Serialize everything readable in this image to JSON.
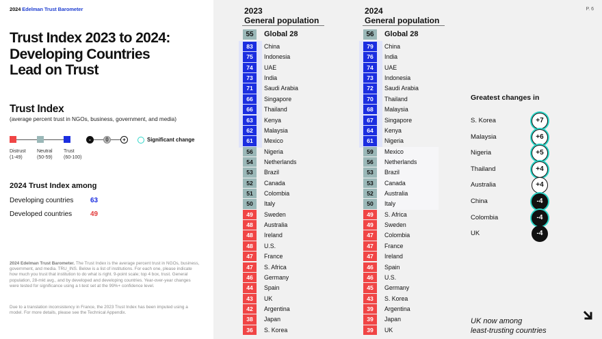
{
  "brand": {
    "year": "2024",
    "name": "Edelman Trust Barometer"
  },
  "title": [
    "Trust Index 2023 to 2024:",
    "Developing Countries",
    "Lead on Trust"
  ],
  "trust_index": {
    "heading": "Trust Index",
    "subtitle": "(average percent trust in NGOs, business, government, and media)",
    "legend": [
      {
        "label": "Distrust",
        "range": "(1-49)",
        "color": "#f04545"
      },
      {
        "label": "Neutral",
        "range": "(50-59)",
        "color": "#9bb8b8"
      },
      {
        "label": "Trust",
        "range": "(60-100)",
        "color": "#1b2ee0"
      }
    ],
    "symbols": {
      "neg": "-",
      "zero": "0",
      "pos": "+"
    },
    "significant_label": "Significant change"
  },
  "among": {
    "heading": "2024 Trust Index among",
    "rows": [
      {
        "label": "Developing countries",
        "value": "63",
        "color": "#1b2ee0"
      },
      {
        "label": "Developed countries",
        "value": "49",
        "color": "#e23b3b"
      }
    ]
  },
  "footnote1_bold": "2024 Edelman Trust Barometer.",
  "footnote1": " The Trust Index is the average percent trust in NGOs, business, government, and media. TRU_INS. Below is a list of institutions. For each one, please indicate how much you trust that institution to do what is right. 9-point scale; top 4 box, trust. General population, 28-mkt avg., and by developed and developing countries. Year-over-year changes were tested for significance using a t-test set at the 99%+ confidence level.",
  "footnote2": "Due to a translation inconsistency in France, the 2023 Trust Index has been imputed using a model. For more details, please see the Technical Appendix.",
  "page": "P. 6",
  "columns": [
    {
      "year": "2023",
      "label": "General population",
      "global": {
        "value": "55",
        "label": "Global 28"
      },
      "rows": [
        {
          "v": "83",
          "c": "China",
          "t": "trust"
        },
        {
          "v": "75",
          "c": "Indonesia",
          "t": "trust"
        },
        {
          "v": "74",
          "c": "UAE",
          "t": "trust"
        },
        {
          "v": "73",
          "c": "India",
          "t": "trust"
        },
        {
          "v": "71",
          "c": "Saudi Arabia",
          "t": "trust"
        },
        {
          "v": "66",
          "c": "Singapore",
          "t": "trust"
        },
        {
          "v": "66",
          "c": "Thailand",
          "t": "trust"
        },
        {
          "v": "63",
          "c": "Kenya",
          "t": "trust"
        },
        {
          "v": "62",
          "c": "Malaysia",
          "t": "trust"
        },
        {
          "v": "61",
          "c": "Mexico",
          "t": "trust"
        },
        {
          "v": "56",
          "c": "Nigeria",
          "t": "neutral"
        },
        {
          "v": "54",
          "c": "Netherlands",
          "t": "neutral"
        },
        {
          "v": "53",
          "c": "Brazil",
          "t": "neutral"
        },
        {
          "v": "52",
          "c": "Canada",
          "t": "neutral"
        },
        {
          "v": "51",
          "c": "Colombia",
          "t": "neutral"
        },
        {
          "v": "50",
          "c": "Italy",
          "t": "neutral"
        },
        {
          "v": "49",
          "c": "Sweden",
          "t": "distrust"
        },
        {
          "v": "48",
          "c": "Australia",
          "t": "distrust"
        },
        {
          "v": "48",
          "c": "Ireland",
          "t": "distrust"
        },
        {
          "v": "48",
          "c": "U.S.",
          "t": "distrust"
        },
        {
          "v": "47",
          "c": "France",
          "t": "distrust"
        },
        {
          "v": "47",
          "c": "S. Africa",
          "t": "distrust"
        },
        {
          "v": "46",
          "c": "Germany",
          "t": "distrust"
        },
        {
          "v": "44",
          "c": "Spain",
          "t": "distrust"
        },
        {
          "v": "43",
          "c": "UK",
          "t": "distrust"
        },
        {
          "v": "42",
          "c": "Argentina",
          "t": "distrust"
        },
        {
          "v": "38",
          "c": "Japan",
          "t": "distrust"
        },
        {
          "v": "36",
          "c": "S. Korea",
          "t": "distrust"
        }
      ]
    },
    {
      "year": "2024",
      "label": "General population",
      "global": {
        "value": "56",
        "label": "Global 28"
      },
      "rows": [
        {
          "v": "79",
          "c": "China",
          "t": "trust"
        },
        {
          "v": "76",
          "c": "India",
          "t": "trust"
        },
        {
          "v": "74",
          "c": "UAE",
          "t": "trust"
        },
        {
          "v": "73",
          "c": "Indonesia",
          "t": "trust"
        },
        {
          "v": "72",
          "c": "Saudi Arabia",
          "t": "trust"
        },
        {
          "v": "70",
          "c": "Thailand",
          "t": "trust"
        },
        {
          "v": "68",
          "c": "Malaysia",
          "t": "trust"
        },
        {
          "v": "67",
          "c": "Singapore",
          "t": "trust"
        },
        {
          "v": "64",
          "c": "Kenya",
          "t": "trust"
        },
        {
          "v": "61",
          "c": "Nigeria",
          "t": "trust"
        },
        {
          "v": "59",
          "c": "Mexico",
          "t": "neutral"
        },
        {
          "v": "56",
          "c": "Netherlands",
          "t": "neutral"
        },
        {
          "v": "53",
          "c": "Brazil",
          "t": "neutral"
        },
        {
          "v": "53",
          "c": "Canada",
          "t": "neutral"
        },
        {
          "v": "52",
          "c": "Australia",
          "t": "neutral"
        },
        {
          "v": "50",
          "c": "Italy",
          "t": "neutral"
        },
        {
          "v": "49",
          "c": "S. Africa",
          "t": "distrust"
        },
        {
          "v": "49",
          "c": "Sweden",
          "t": "distrust"
        },
        {
          "v": "47",
          "c": "Colombia",
          "t": "distrust"
        },
        {
          "v": "47",
          "c": "France",
          "t": "distrust"
        },
        {
          "v": "47",
          "c": "Ireland",
          "t": "distrust"
        },
        {
          "v": "46",
          "c": "Spain",
          "t": "distrust"
        },
        {
          "v": "46",
          "c": "U.S.",
          "t": "distrust"
        },
        {
          "v": "45",
          "c": "Germany",
          "t": "distrust"
        },
        {
          "v": "43",
          "c": "S. Korea",
          "t": "distrust"
        },
        {
          "v": "39",
          "c": "Argentina",
          "t": "distrust"
        },
        {
          "v": "39",
          "c": "Japan",
          "t": "distrust"
        },
        {
          "v": "39",
          "c": "UK",
          "t": "distrust"
        }
      ]
    }
  ],
  "tier_colors": {
    "trust": "#1b2ee0",
    "neutral": "#9bb8b8",
    "distrust": "#f04545"
  },
  "greatest_changes": {
    "heading": "Greatest changes in",
    "items": [
      {
        "country": "S. Korea",
        "change": "+7",
        "dir": "pos",
        "sig": true
      },
      {
        "country": "Malaysia",
        "change": "+6",
        "dir": "pos",
        "sig": true
      },
      {
        "country": "Nigeria",
        "change": "+5",
        "dir": "pos",
        "sig": true
      },
      {
        "country": "Thailand",
        "change": "+4",
        "dir": "pos",
        "sig": true
      },
      {
        "country": "Australia",
        "change": "+4",
        "dir": "pos",
        "sig": false
      },
      {
        "country": "China",
        "change": "-4",
        "dir": "neg",
        "sig": true
      },
      {
        "country": "Colombia",
        "change": "-4",
        "dir": "neg",
        "sig": true
      },
      {
        "country": "UK",
        "change": "-4",
        "dir": "neg",
        "sig": false
      }
    ]
  },
  "note": [
    "UK now among",
    "least-trusting countries"
  ]
}
